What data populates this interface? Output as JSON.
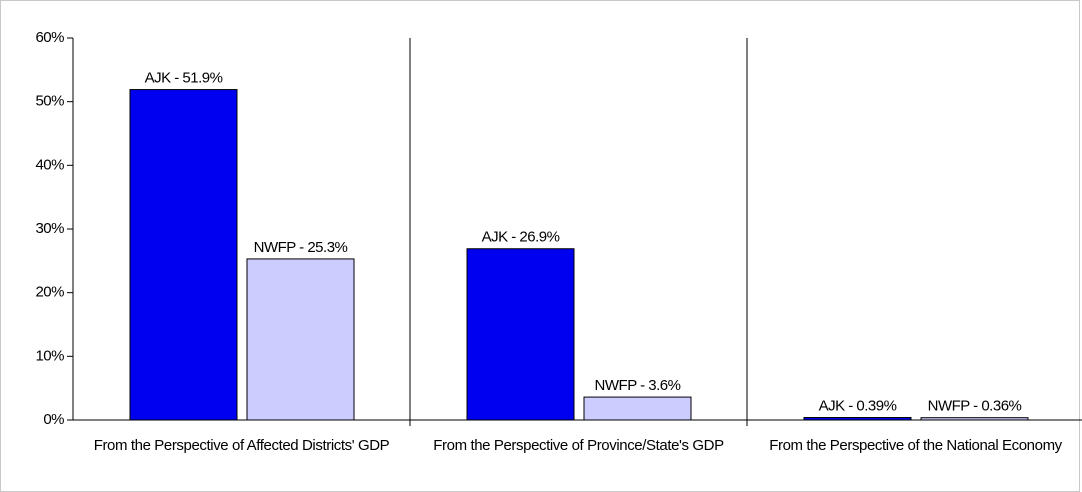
{
  "chart_data": {
    "type": "bar",
    "categories": [
      "From the Perspective of Affected Districts' GDP",
      "From the Perspective of Province/State's GDP",
      "From the Perspective of the National Economy"
    ],
    "series": [
      {
        "color": "#0000f0",
        "values": [
          51.9,
          26.9,
          0.39
        ],
        "value_labels": [
          "AJK - 51.9%",
          "AJK - 26.9%",
          "AJK - 0.39%"
        ]
      },
      {
        "color": "#ccccff",
        "values": [
          25.3,
          3.6,
          0.36
        ],
        "value_labels": [
          "NWFP - 25.3%",
          "NWFP - 3.6%",
          "NWFP - 0.36%"
        ]
      }
    ],
    "ylim": [
      0,
      60
    ],
    "yticks": [
      {
        "value": 0,
        "label": "0%"
      },
      {
        "value": 10,
        "label": "10%"
      },
      {
        "value": 20,
        "label": "20%"
      },
      {
        "value": 30,
        "label": "30%"
      },
      {
        "value": 40,
        "label": "40%"
      },
      {
        "value": 50,
        "label": "50%"
      },
      {
        "value": 60,
        "label": "60%"
      }
    ]
  }
}
